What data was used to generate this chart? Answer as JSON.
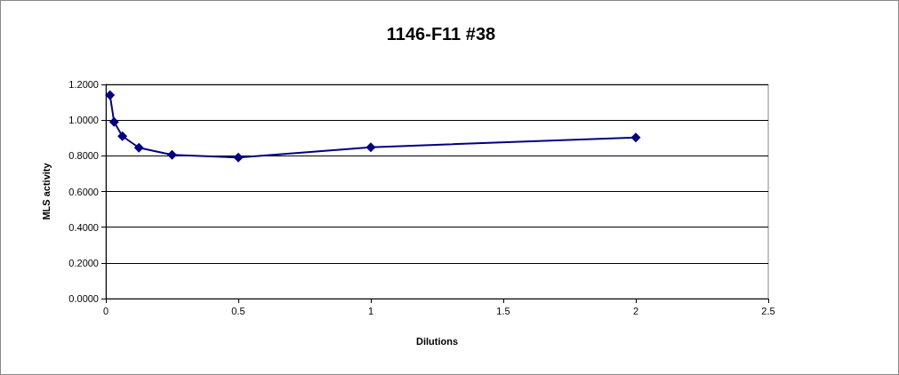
{
  "chart_data": {
    "type": "line",
    "title": "1146-F11 #38",
    "xlabel": "Dilutions",
    "ylabel": "MLS activity",
    "x": [
      0.015625,
      0.03125,
      0.0625,
      0.125,
      0.25,
      0.5,
      1,
      2
    ],
    "series": [
      {
        "color": "#000080",
        "values": [
          1.14,
          0.99,
          0.91,
          0.845,
          0.805,
          0.79,
          0.848,
          0.903
        ]
      }
    ],
    "xlim": [
      0,
      2.5
    ],
    "xticks": [
      0,
      0.5,
      1,
      1.5,
      2,
      2.5
    ],
    "ylim": [
      0,
      1.2
    ],
    "yticks": [
      {
        "value": 0,
        "label": "0.0000"
      },
      {
        "value": 0.2,
        "label": "0.2000"
      },
      {
        "value": 0.4,
        "label": "0.4000"
      },
      {
        "value": 0.6,
        "label": "0.6000"
      },
      {
        "value": 0.8,
        "label": "0.8000"
      },
      {
        "value": 1,
        "label": "1.0000"
      },
      {
        "value": 1.2,
        "label": "1.2000"
      }
    ],
    "grid": "y",
    "marker": "diamond",
    "line_style": "solid"
  }
}
